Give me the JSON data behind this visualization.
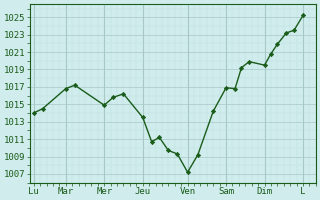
{
  "background_color": "#d0ecec",
  "line_color": "#1a5c1a",
  "marker_color": "#1a5c1a",
  "grid_color_major": "#a8c8c8",
  "grid_color_minor": "#c0e0e0",
  "ylim": [
    1006,
    1026.5
  ],
  "yticks": [
    1007,
    1009,
    1011,
    1013,
    1015,
    1017,
    1019,
    1021,
    1023,
    1025
  ],
  "ytick_labels": [
    "1007",
    "1009",
    "1011",
    "1013",
    "1015",
    "1017",
    "1019",
    "1021",
    "1023",
    "1025"
  ],
  "x_positions": [
    0.0,
    2.5,
    5.5,
    8.5,
    12.0,
    15.0,
    18.0,
    21.0
  ],
  "x_labels": [
    "Lu",
    "Mar",
    "Mer",
    "Jeu",
    "Ven",
    "Sam",
    "Dim",
    "L"
  ],
  "xlim": [
    -0.3,
    22.0
  ],
  "data_x": [
    0.0,
    0.7,
    2.5,
    3.2,
    5.5,
    6.2,
    7.0,
    8.5,
    9.2,
    9.8,
    10.5,
    11.2,
    12.0,
    12.8,
    14.0,
    15.0,
    15.7,
    16.2,
    16.8,
    18.0,
    18.5,
    19.0,
    19.7,
    20.3,
    21.0
  ],
  "data_y": [
    1014.0,
    1014.5,
    1016.8,
    1017.2,
    1014.9,
    1015.8,
    1016.2,
    1013.5,
    1010.7,
    1011.2,
    1009.7,
    1009.3,
    1007.2,
    1009.2,
    1014.2,
    1016.9,
    1016.8,
    1019.2,
    1019.9,
    1019.5,
    1020.8,
    1021.9,
    1023.2,
    1023.5,
    1025.2
  ],
  "fontsize": 6.5
}
